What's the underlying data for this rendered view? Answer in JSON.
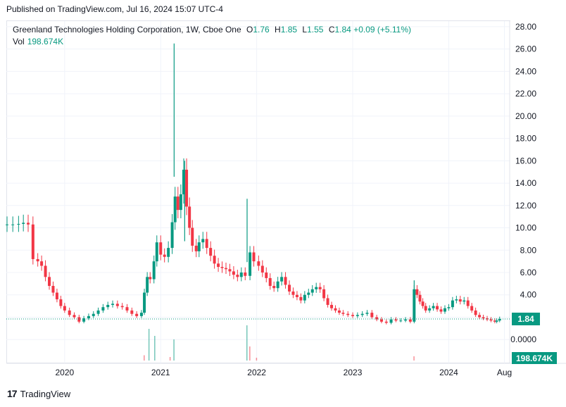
{
  "header": {
    "published": "Published on TradingView.com, Jul 16, 2024 15:07 UTC-4"
  },
  "legend": {
    "symbol": "Greenland Technologies Holding Corporation, 1W, Cboe One",
    "open_label": "O",
    "open": "1.76",
    "high_label": "H",
    "high": "1.85",
    "low_label": "L",
    "low": "1.55",
    "close_label": "C",
    "close": "1.84",
    "change": "+0.09 (+5.11%)",
    "vol_label": "Vol",
    "vol": "198.674K"
  },
  "price_badge": "1.84",
  "volume_badge": "198.674K",
  "footer": {
    "brand": "TradingView",
    "logo_glyph": "17"
  },
  "colors": {
    "up": "#089981",
    "down": "#f23645",
    "grid": "#f0f3fa",
    "axis_text": "#131722",
    "badge_bg": "#089981"
  },
  "chart_data": {
    "type": "candlestick",
    "interval": "1W",
    "y_axis_ticks": [
      "28.00",
      "26.00",
      "24.00",
      "22.00",
      "20.00",
      "18.00",
      "16.00",
      "14.00",
      "12.00",
      "10.00",
      "8.00",
      "6.00",
      "4.00",
      "2.00",
      "0.0000"
    ],
    "ylim": [
      0,
      28.5
    ],
    "x_axis_ticks": [
      "2020",
      "2021",
      "2022",
      "2023",
      "2024",
      "Aug"
    ],
    "x_tick_dates": [
      2020.0,
      2021.0,
      2022.0,
      2023.0,
      2024.0,
      2024.58
    ],
    "series": [
      {
        "name": "Price",
        "type": "candlestick",
        "points": [
          [
            2019.4,
            10.3
          ],
          [
            2019.46,
            10.3
          ],
          [
            2019.52,
            10.35
          ],
          [
            2019.57,
            10.45
          ],
          [
            2019.62,
            10.3
          ],
          [
            2019.67,
            7.2
          ],
          [
            2019.72,
            7.0
          ],
          [
            2019.76,
            6.6
          ],
          [
            2019.8,
            5.6
          ],
          [
            2019.84,
            4.8
          ],
          [
            2019.88,
            4.2
          ],
          [
            2019.92,
            3.6
          ],
          [
            2019.96,
            3.0
          ],
          [
            2020.0,
            2.6
          ],
          [
            2020.05,
            2.2
          ],
          [
            2020.1,
            2.0
          ],
          [
            2020.15,
            1.6
          ],
          [
            2020.2,
            1.9
          ],
          [
            2020.25,
            2.1
          ],
          [
            2020.3,
            2.3
          ],
          [
            2020.35,
            2.6
          ],
          [
            2020.4,
            2.9
          ],
          [
            2020.45,
            3.1
          ],
          [
            2020.5,
            3.2
          ],
          [
            2020.55,
            3.0
          ],
          [
            2020.6,
            2.9
          ],
          [
            2020.65,
            2.6
          ],
          [
            2020.7,
            2.3
          ],
          [
            2020.75,
            2.1
          ],
          [
            2020.8,
            2.4
          ],
          [
            2020.83,
            4.2
          ],
          [
            2020.86,
            5.6
          ],
          [
            2020.89,
            5.4
          ],
          [
            2020.93,
            7.0
          ],
          [
            2020.96,
            8.7
          ],
          [
            2021.0,
            7.6
          ],
          [
            2021.04,
            7.4
          ],
          [
            2021.08,
            8.2
          ],
          [
            2021.12,
            10.5
          ],
          [
            2021.15,
            12.8
          ],
          [
            2021.18,
            11.6
          ],
          [
            2021.21,
            13.0
          ],
          [
            2021.24,
            15.2
          ],
          [
            2021.27,
            11.9
          ],
          [
            2021.3,
            10.0
          ],
          [
            2021.33,
            8.4
          ],
          [
            2021.37,
            7.9
          ],
          [
            2021.4,
            8.7
          ],
          [
            2021.44,
            9.0
          ],
          [
            2021.48,
            8.2
          ],
          [
            2021.52,
            7.5
          ],
          [
            2021.56,
            6.8
          ],
          [
            2021.6,
            6.5
          ],
          [
            2021.64,
            6.4
          ],
          [
            2021.68,
            6.3
          ],
          [
            2021.72,
            6.1
          ],
          [
            2021.76,
            5.8
          ],
          [
            2021.8,
            5.6
          ],
          [
            2021.84,
            6.0
          ],
          [
            2021.88,
            5.7
          ],
          [
            2021.93,
            7.8
          ],
          [
            2021.97,
            7.0
          ],
          [
            2022.02,
            6.6
          ],
          [
            2022.06,
            6.0
          ],
          [
            2022.1,
            5.5
          ],
          [
            2022.14,
            4.8
          ],
          [
            2022.18,
            4.6
          ],
          [
            2022.22,
            5.2
          ],
          [
            2022.26,
            5.6
          ],
          [
            2022.3,
            4.9
          ],
          [
            2022.34,
            4.3
          ],
          [
            2022.38,
            4.0
          ],
          [
            2022.42,
            3.8
          ],
          [
            2022.46,
            3.5
          ],
          [
            2022.5,
            4.0
          ],
          [
            2022.54,
            4.2
          ],
          [
            2022.58,
            4.5
          ],
          [
            2022.62,
            4.7
          ],
          [
            2022.66,
            4.5
          ],
          [
            2022.7,
            3.7
          ],
          [
            2022.74,
            3.1
          ],
          [
            2022.78,
            2.8
          ],
          [
            2022.82,
            2.6
          ],
          [
            2022.86,
            2.4
          ],
          [
            2022.9,
            2.3
          ],
          [
            2022.95,
            2.2
          ],
          [
            2023.0,
            2.1
          ],
          [
            2023.05,
            2.2
          ],
          [
            2023.1,
            2.3
          ],
          [
            2023.15,
            2.4
          ],
          [
            2023.2,
            2.0
          ],
          [
            2023.25,
            1.8
          ],
          [
            2023.3,
            1.6
          ],
          [
            2023.35,
            1.5
          ],
          [
            2023.4,
            1.8
          ],
          [
            2023.45,
            1.7
          ],
          [
            2023.5,
            1.7
          ],
          [
            2023.55,
            1.8
          ],
          [
            2023.6,
            1.6
          ],
          [
            2023.64,
            4.5
          ],
          [
            2023.67,
            4.0
          ],
          [
            2023.7,
            3.4
          ],
          [
            2023.73,
            3.0
          ],
          [
            2023.76,
            2.6
          ],
          [
            2023.8,
            2.8
          ],
          [
            2023.84,
            3.0
          ],
          [
            2023.88,
            2.7
          ],
          [
            2023.92,
            2.5
          ],
          [
            2023.96,
            2.8
          ],
          [
            2024.0,
            2.9
          ],
          [
            2024.04,
            3.5
          ],
          [
            2024.08,
            3.6
          ],
          [
            2024.12,
            3.4
          ],
          [
            2024.16,
            3.5
          ],
          [
            2024.2,
            3.0
          ],
          [
            2024.24,
            2.6
          ],
          [
            2024.28,
            2.2
          ],
          [
            2024.32,
            2.0
          ],
          [
            2024.36,
            1.9
          ],
          [
            2024.4,
            1.8
          ],
          [
            2024.44,
            1.7
          ],
          [
            2024.48,
            1.6
          ],
          [
            2024.5,
            1.7
          ],
          [
            2024.53,
            1.84
          ]
        ],
        "spikes": [
          [
            2021.14,
            26.5
          ],
          [
            2021.9,
            12.6
          ],
          [
            2021.25,
            16.0
          ],
          [
            2023.64,
            5.3
          ]
        ]
      },
      {
        "name": "Volume",
        "type": "bar",
        "bars": [
          [
            2020.88,
            0.9
          ],
          [
            2020.94,
            0.7
          ],
          [
            2021.14,
            0.6
          ],
          [
            2021.9,
            1.0
          ],
          [
            2021.93,
            0.4
          ],
          [
            2020.83,
            0.15
          ],
          [
            2021.1,
            0.1
          ],
          [
            2022.0,
            0.08
          ],
          [
            2023.64,
            0.12
          ]
        ]
      }
    ]
  }
}
